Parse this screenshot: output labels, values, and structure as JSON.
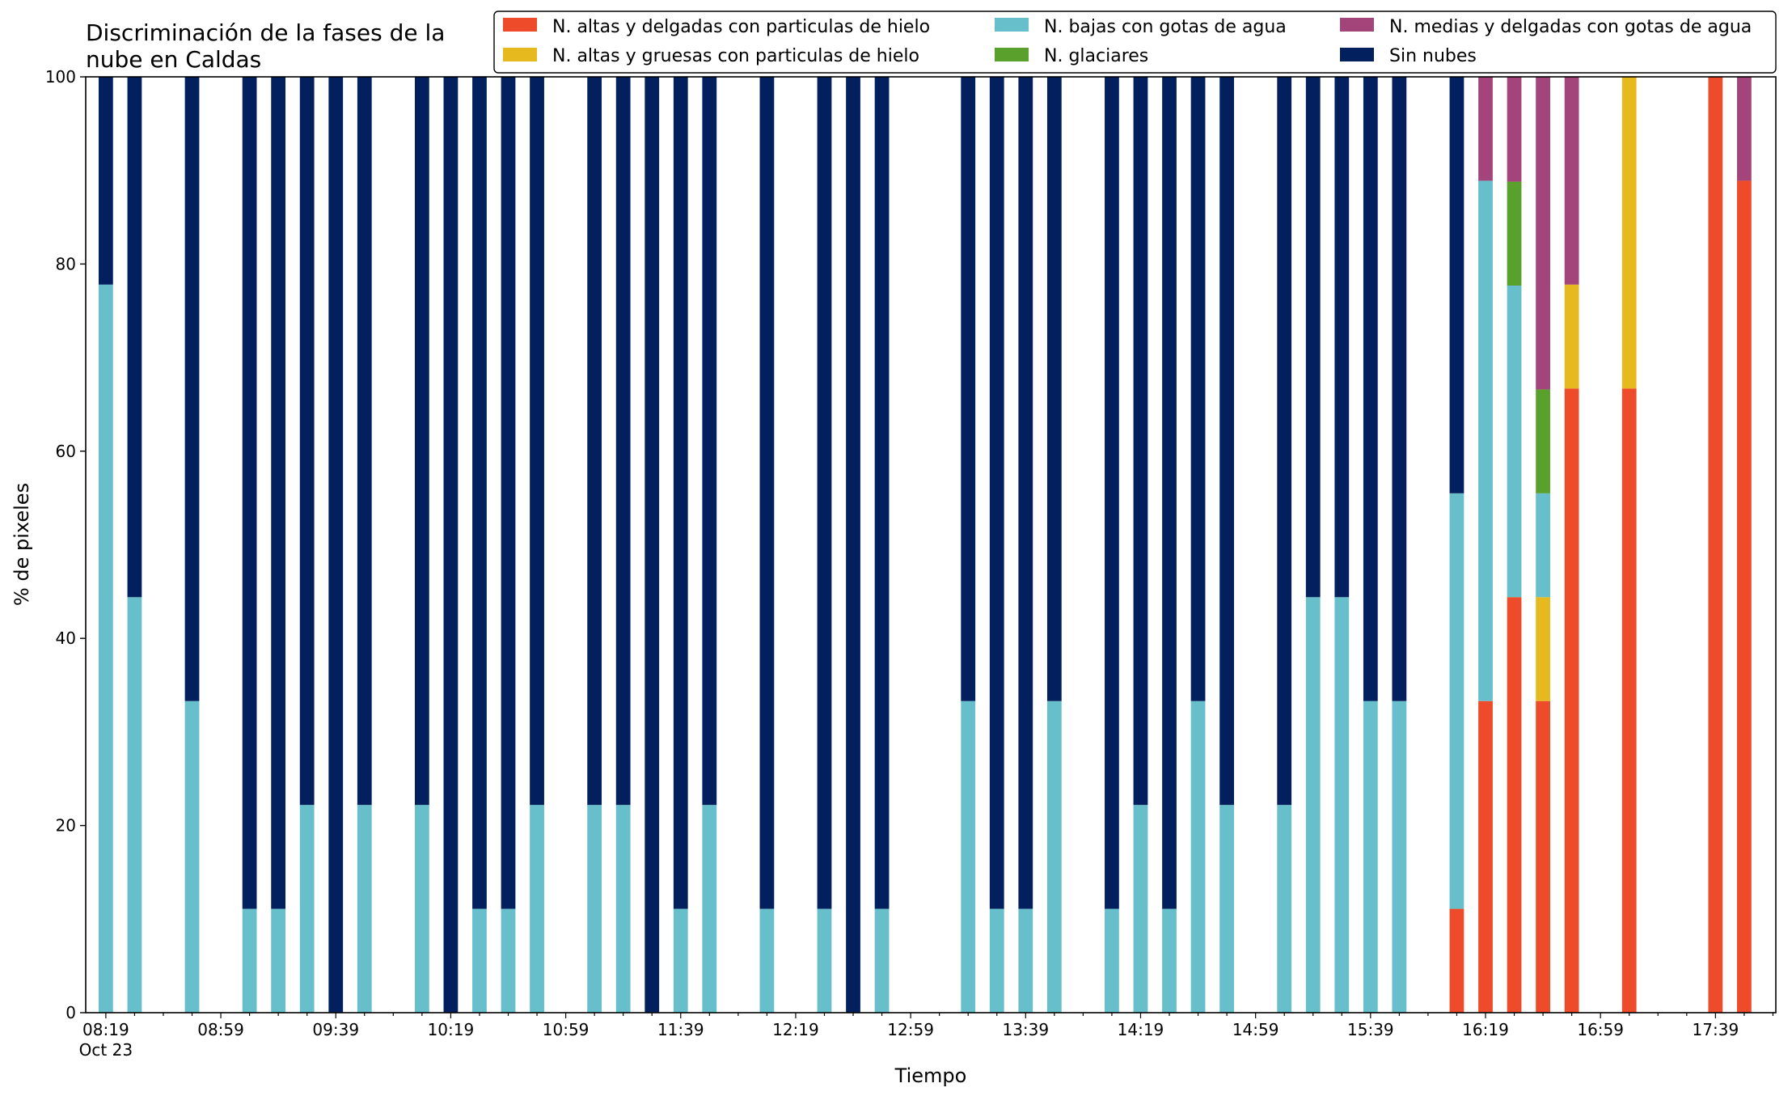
{
  "chart_data": {
    "type": "bar",
    "stacked": true,
    "title_lines": [
      "Discriminación de la fases de la",
      "nube en Caldas"
    ],
    "xlabel": "Tiempo",
    "ylabel": "% de pixeles",
    "ylim": [
      0,
      100
    ],
    "yticks": [
      0,
      20,
      40,
      60,
      80,
      100
    ],
    "xlim": [
      "08:12",
      "18:00"
    ],
    "xtick_labels": [
      "08:19",
      "08:59",
      "09:39",
      "10:19",
      "10:59",
      "11:39",
      "12:19",
      "12:59",
      "13:39",
      "14:19",
      "14:59",
      "15:39",
      "16:19",
      "16:59",
      "17:39"
    ],
    "xtick_sublabel": "Oct 23",
    "grid": false,
    "legend_position": "top-right",
    "series": [
      {
        "name": "N. altas y delgadas con particulas de hielo",
        "color": "#ee4b2b"
      },
      {
        "name": "N. altas y gruesas con particulas de hielo",
        "color": "#e6b91e"
      },
      {
        "name": "N. bajas con gotas de agua",
        "color": "#66bfcb"
      },
      {
        "name": "N. glaciares",
        "color": "#5aa02c"
      },
      {
        "name": "N. medias y delgadas con gotas de agua",
        "color": "#a3457a"
      },
      {
        "name": "Sin nubes",
        "color": "#03205e"
      }
    ],
    "bars": [
      {
        "time": "08:19",
        "values": [
          0,
          0,
          77.8,
          0,
          0,
          22.2
        ]
      },
      {
        "time": "08:29",
        "values": [
          0,
          0,
          44.4,
          0,
          0,
          55.6
        ]
      },
      {
        "time": "08:49",
        "values": [
          0,
          0,
          33.3,
          0,
          0,
          66.7
        ]
      },
      {
        "time": "09:09",
        "values": [
          0,
          0,
          11.1,
          0,
          0,
          88.9
        ]
      },
      {
        "time": "09:19",
        "values": [
          0,
          0,
          11.1,
          0,
          0,
          88.9
        ]
      },
      {
        "time": "09:29",
        "values": [
          0,
          0,
          22.2,
          0,
          0,
          77.8
        ]
      },
      {
        "time": "09:39",
        "values": [
          0,
          0,
          0,
          0,
          0,
          100
        ]
      },
      {
        "time": "09:49",
        "values": [
          0,
          0,
          22.2,
          0,
          0,
          77.8
        ]
      },
      {
        "time": "10:09",
        "values": [
          0,
          0,
          22.2,
          0,
          0,
          77.8
        ]
      },
      {
        "time": "10:19",
        "values": [
          0,
          0,
          0,
          0,
          0,
          100
        ]
      },
      {
        "time": "10:29",
        "values": [
          0,
          0,
          11.1,
          0,
          0,
          88.9
        ]
      },
      {
        "time": "10:39",
        "values": [
          0,
          0,
          11.1,
          0,
          0,
          88.9
        ]
      },
      {
        "time": "10:49",
        "values": [
          0,
          0,
          22.2,
          0,
          0,
          77.8
        ]
      },
      {
        "time": "11:09",
        "values": [
          0,
          0,
          22.2,
          0,
          0,
          77.8
        ]
      },
      {
        "time": "11:19",
        "values": [
          0,
          0,
          22.2,
          0,
          0,
          77.8
        ]
      },
      {
        "time": "11:29",
        "values": [
          0,
          0,
          0,
          0,
          0,
          100
        ]
      },
      {
        "time": "11:39",
        "values": [
          0,
          0,
          11.1,
          0,
          0,
          88.9
        ]
      },
      {
        "time": "11:49",
        "values": [
          0,
          0,
          22.2,
          0,
          0,
          77.8
        ]
      },
      {
        "time": "12:09",
        "values": [
          0,
          0,
          11.1,
          0,
          0,
          88.9
        ]
      },
      {
        "time": "12:29",
        "values": [
          0,
          0,
          11.1,
          0,
          0,
          88.9
        ]
      },
      {
        "time": "12:39",
        "values": [
          0,
          0,
          0,
          0,
          0,
          100
        ]
      },
      {
        "time": "12:49",
        "values": [
          0,
          0,
          11.1,
          0,
          0,
          88.9
        ]
      },
      {
        "time": "13:19",
        "values": [
          0,
          0,
          33.3,
          0,
          0,
          66.7
        ]
      },
      {
        "time": "13:29",
        "values": [
          0,
          0,
          11.1,
          0,
          0,
          88.9
        ]
      },
      {
        "time": "13:39",
        "values": [
          0,
          0,
          11.1,
          0,
          0,
          88.9
        ]
      },
      {
        "time": "13:49",
        "values": [
          0,
          0,
          33.3,
          0,
          0,
          66.7
        ]
      },
      {
        "time": "14:09",
        "values": [
          0,
          0,
          11.1,
          0,
          0,
          88.9
        ]
      },
      {
        "time": "14:19",
        "values": [
          0,
          0,
          22.2,
          0,
          0,
          77.8
        ]
      },
      {
        "time": "14:29",
        "values": [
          0,
          0,
          11.1,
          0,
          0,
          88.9
        ]
      },
      {
        "time": "14:39",
        "values": [
          0,
          0,
          33.3,
          0,
          0,
          66.7
        ]
      },
      {
        "time": "14:49",
        "values": [
          0,
          0,
          22.2,
          0,
          0,
          77.8
        ]
      },
      {
        "time": "15:09",
        "values": [
          0,
          0,
          22.2,
          0,
          0,
          77.8
        ]
      },
      {
        "time": "15:19",
        "values": [
          0,
          0,
          44.4,
          0,
          0,
          55.6
        ]
      },
      {
        "time": "15:29",
        "values": [
          0,
          0,
          44.4,
          0,
          0,
          55.6
        ]
      },
      {
        "time": "15:39",
        "values": [
          0,
          0,
          33.3,
          0,
          0,
          66.7
        ]
      },
      {
        "time": "15:49",
        "values": [
          0,
          0,
          33.3,
          0,
          0,
          66.7
        ]
      },
      {
        "time": "16:09",
        "values": [
          11.1,
          0,
          44.4,
          0,
          0,
          44.5
        ]
      },
      {
        "time": "16:19",
        "values": [
          33.3,
          0,
          55.6,
          0,
          11.1,
          0
        ]
      },
      {
        "time": "16:29",
        "values": [
          44.4,
          0,
          33.3,
          11.1,
          11.2,
          0
        ]
      },
      {
        "time": "16:39",
        "values": [
          33.3,
          11.1,
          11.1,
          11.1,
          33.4,
          0
        ]
      },
      {
        "time": "16:49",
        "values": [
          66.7,
          11.1,
          0,
          0,
          22.2,
          0
        ]
      },
      {
        "time": "16:59",
        "values": [
          0,
          0,
          0,
          0,
          0,
          0
        ]
      },
      {
        "time": "17:09",
        "values": [
          66.7,
          33.3,
          0,
          0,
          0,
          0
        ]
      },
      {
        "time": "17:39",
        "values": [
          100,
          0,
          0,
          0,
          0,
          0
        ]
      },
      {
        "time": "17:49",
        "values": [
          88.9,
          0,
          0,
          0,
          11.1,
          0
        ]
      }
    ]
  }
}
